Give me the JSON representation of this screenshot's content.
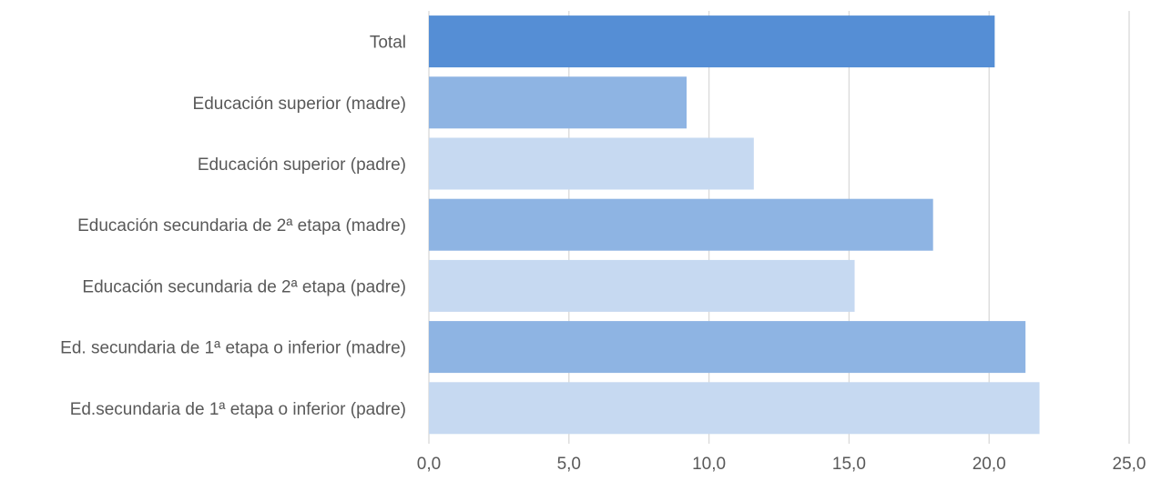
{
  "chart_data": {
    "type": "bar",
    "orientation": "horizontal",
    "categories": [
      "Total",
      "Educación superior (madre)",
      "Educación superior (padre)",
      "Educación secundaria de 2ª etapa (madre)",
      "Educación secundaria de 2ª etapa (padre)",
      "Ed. secundaria de 1ª etapa o inferior (madre)",
      "Ed.secundaria de 1ª etapa o inferior (padre)"
    ],
    "values": [
      20.2,
      9.2,
      11.6,
      18.0,
      15.2,
      21.3,
      21.8
    ],
    "bar_colors": [
      "#558ed5",
      "#8eb4e3",
      "#c6d9f1",
      "#8eb4e3",
      "#c6d9f1",
      "#8eb4e3",
      "#c6d9f1"
    ],
    "xlim": [
      0,
      25
    ],
    "x_ticks": [
      0,
      5,
      10,
      15,
      20,
      25
    ],
    "x_tick_labels": [
      "0,0",
      "5,0",
      "10,0",
      "15,0",
      "20,0",
      "25,0"
    ],
    "title": "",
    "xlabel": "",
    "ylabel": "",
    "grid": true,
    "legend": false
  }
}
